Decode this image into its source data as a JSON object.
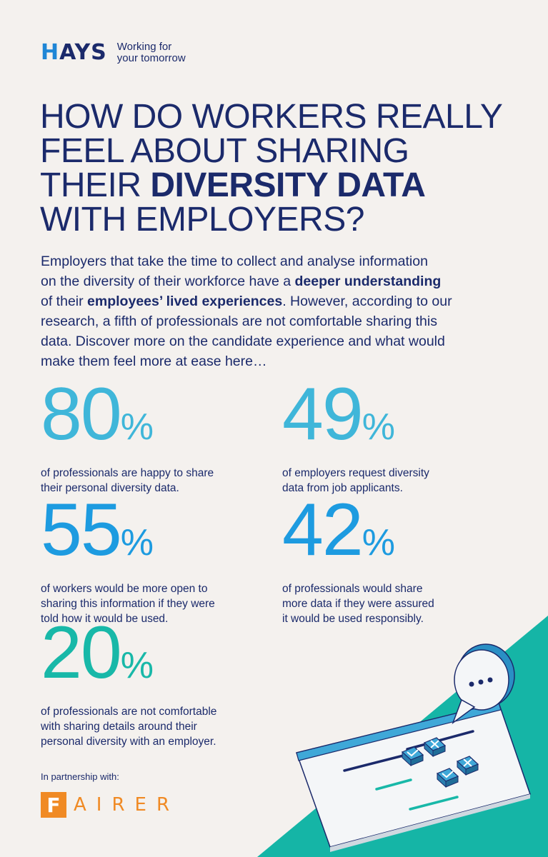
{
  "brand": {
    "name_prefix": "H",
    "name_rest": "AYS",
    "tagline_line1": "Working for",
    "tagline_line2": "your tomorrow"
  },
  "headline": {
    "line1": "How do workers really",
    "line2": "feel about sharing",
    "line3_prefix": "their ",
    "line3_bold": "diversity data",
    "line4": "with employers?"
  },
  "intro": {
    "l1": "Employers that take the time to collect and analyse information",
    "l2_a": "on the diversity of their workforce have a ",
    "l2_b": "deeper understanding",
    "l3_a": "of their ",
    "l3_b": "employees’ lived experiences",
    "l3_c": ". However, according to our",
    "l4": "research, a fifth of professionals are not comfortable sharing this",
    "l5": "data. Discover more on the candidate experience and what would",
    "l6": "make them feel more at ease here…"
  },
  "stats": {
    "a": {
      "value": "80",
      "unit": "%",
      "line1": "of professionals are happy to share",
      "line2": "their personal diversity data.",
      "color": "#3fb6d9"
    },
    "b": {
      "value": "49",
      "unit": "%",
      "line1": "of employers request diversity",
      "line2": "data from job applicants.",
      "color": "#3fb6d9"
    },
    "c": {
      "value": "55",
      "unit": "%",
      "line1": "of workers would be more open to",
      "line2": "sharing this information if they were",
      "line3": "told how it would be used.",
      "color": "#1d9be0"
    },
    "d": {
      "value": "42",
      "unit": "%",
      "line1": "of professionals would share",
      "line2": "more data if they were assured",
      "line3": "it would be used responsibly.",
      "color": "#1d9be0"
    },
    "e": {
      "value": "20",
      "unit": "%",
      "line1": "of professionals are not comfortable",
      "line2": "with sharing details around their",
      "line3": "personal diversity with an employer.",
      "color": "#18b8a8"
    }
  },
  "partner": {
    "label": "In partnership with:",
    "logo_initial": "F",
    "logo_rest": "AIRER"
  },
  "colors": {
    "navy": "#1b2a6b",
    "teal_background": "#15b5a6",
    "orange": "#f08a24",
    "light_blue": "#3fb6d9"
  },
  "icons": [
    "speech-bubble-icon",
    "checkbox-check-icon",
    "checkbox-cross-icon"
  ]
}
